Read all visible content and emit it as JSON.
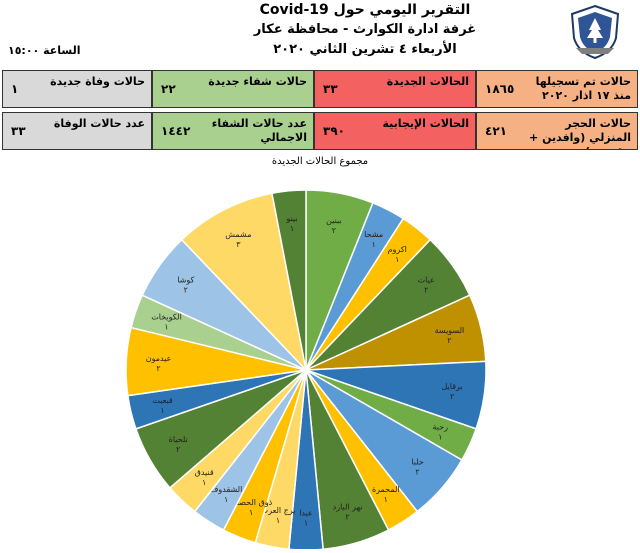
{
  "header": {
    "title_line1": "التقرير اليومي حول Covid-19",
    "title_line2": "غرفة ادارة الكوارث - محافظة عكار",
    "title_line3": "الأربعاء ٤ تشرين الثاني ٢٠٢٠",
    "time": "الساعة ١٥:٠٠"
  },
  "stats": {
    "row1": [
      {
        "label": "حالات تم تسجيلها منذ ١٧ اذار ٢٠٢٠",
        "value": "١٨٦٥",
        "color": "#f5b183"
      },
      {
        "label": "الحالات الجديدة",
        "value": "٣٣",
        "color": "#f36161"
      },
      {
        "label": "حالات شفاء جديدة",
        "value": "٢٢",
        "color": "#a9d08e"
      },
      {
        "label": "حالات وفاة جديدة",
        "value": "١",
        "color": "#d9d9d9"
      }
    ],
    "row2": [
      {
        "label": "حالات الحجر المنزلي (وافدين + مقيمين)",
        "value": "٤٢١",
        "color": "#f5b183"
      },
      {
        "label": "الحالات الإيجابية",
        "value": "٣٩٠",
        "color": "#f36161"
      },
      {
        "label": "عدد حالات الشفاء الاجمالي",
        "value": "١٤٤٢",
        "color": "#a9d08e"
      },
      {
        "label": "عدد حالات الوفاة",
        "value": "٣٣",
        "color": "#d9d9d9"
      }
    ]
  },
  "chart_data": {
    "type": "pie",
    "title": "مجموع الحالات الجديدة",
    "labels": [
      "بينين",
      "مشحا",
      "اكروم",
      "عيات",
      "السويسة",
      "برقايل",
      "رحبة",
      "حلبا",
      "المحمرة",
      "نهر البارد",
      "عبدا",
      "برج العرب",
      "ذوق الحصنية",
      "الشقدوف",
      "قنيدق",
      "تلحياة",
      "قبعيت",
      "عيدمون",
      "الكويخات",
      "كوشا",
      "مشمش",
      "بينو"
    ],
    "values": [
      2,
      1,
      1,
      2,
      2,
      2,
      1,
      2,
      1,
      2,
      1,
      1,
      1,
      1,
      1,
      2,
      1,
      2,
      1,
      2,
      3,
      1
    ],
    "value_labels": [
      "٢",
      "١",
      "١",
      "٢",
      "٢",
      "٢",
      "١",
      "٢",
      "١",
      "٢",
      "١",
      "١",
      "١",
      "١",
      "١",
      "٢",
      "١",
      "٢",
      "١",
      "٢",
      "٣",
      "١"
    ],
    "colors": [
      "#70ad47",
      "#5b9bd5",
      "#ffc000",
      "#548235",
      "#bf9000",
      "#2e75b6",
      "#70ad47",
      "#5b9bd5",
      "#ffc000",
      "#548235",
      "#2e75b6",
      "#ffd966",
      "#ffc000",
      "#9dc3e6",
      "#ffd966",
      "#548235",
      "#2e75b6",
      "#ffc000",
      "#a9d08e",
      "#9dc3e6",
      "#ffd966",
      "#548235"
    ]
  }
}
